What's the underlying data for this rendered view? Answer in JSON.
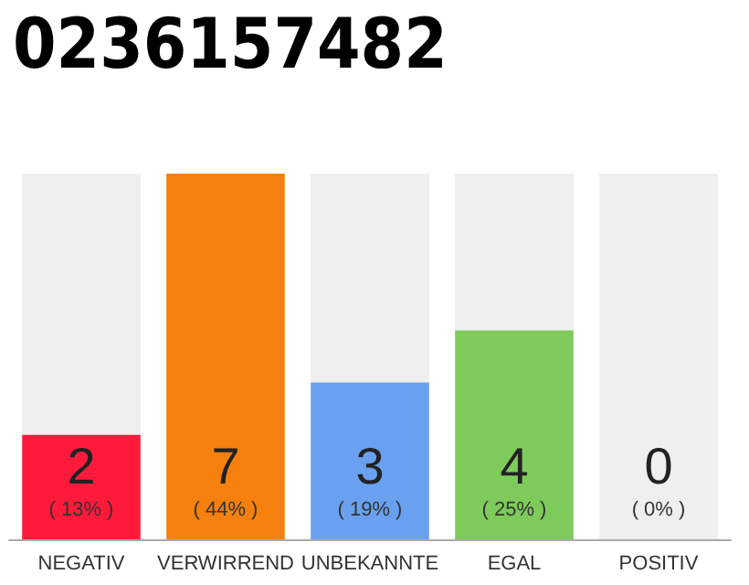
{
  "chart_data": {
    "type": "bar",
    "title": "0236157482",
    "categories": [
      "NEGATIV",
      "VERWIRREND",
      "UNBEKANNTE",
      "EGAL",
      "POSITIV"
    ],
    "values": [
      2,
      7,
      3,
      4,
      0
    ],
    "colors": [
      "#ff1a3c",
      "#f5800e",
      "#6aa0f0",
      "#7ecb5b",
      "#d8d8d8"
    ],
    "value_labels": [
      "2\n( 13% )",
      "7\n( 44% )",
      "3\n( 19% )",
      "4\n( 25% )",
      "0\n( 0% )"
    ]
  }
}
